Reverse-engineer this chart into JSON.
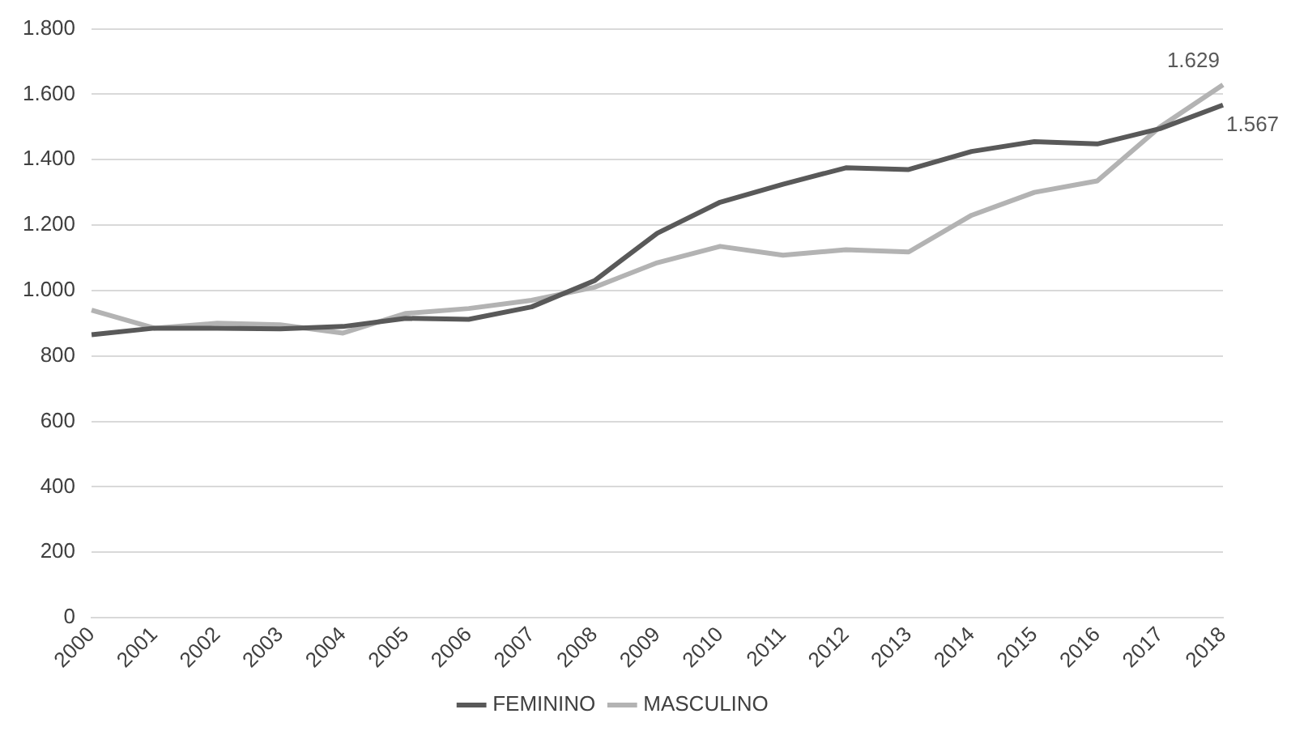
{
  "chart_data": {
    "type": "line",
    "categories": [
      "2000",
      "2001",
      "2002",
      "2003",
      "2004",
      "2005",
      "2006",
      "2007",
      "2008",
      "2009",
      "2010",
      "2011",
      "2012",
      "2013",
      "2014",
      "2015",
      "2016",
      "2017",
      "2018"
    ],
    "series": [
      {
        "name": "FEMININO",
        "color": "#595959",
        "values": [
          865,
          885,
          885,
          883,
          890,
          915,
          912,
          950,
          1030,
          1175,
          1270,
          1325,
          1375,
          1370,
          1425,
          1455,
          1448,
          1495,
          1567
        ],
        "value_labels": [
          null,
          null,
          null,
          null,
          null,
          null,
          null,
          null,
          null,
          null,
          null,
          null,
          null,
          null,
          null,
          null,
          null,
          null,
          "1.567"
        ]
      },
      {
        "name": "MASCULINO",
        "color": "#b3b3b3",
        "values": [
          940,
          885,
          900,
          895,
          870,
          930,
          945,
          970,
          1010,
          1085,
          1135,
          1108,
          1125,
          1118,
          1230,
          1300,
          1335,
          1500,
          1629
        ],
        "value_labels": [
          null,
          null,
          null,
          null,
          null,
          null,
          null,
          null,
          null,
          null,
          null,
          null,
          null,
          null,
          null,
          null,
          null,
          null,
          "1.629"
        ]
      }
    ],
    "ylim": [
      0,
      1800
    ],
    "yticks": [
      {
        "value": 0,
        "label": "0"
      },
      {
        "value": 200,
        "label": "200"
      },
      {
        "value": 400,
        "label": "400"
      },
      {
        "value": 600,
        "label": "600"
      },
      {
        "value": 800,
        "label": "800"
      },
      {
        "value": 1000,
        "label": "1.000"
      },
      {
        "value": 1200,
        "label": "1.200"
      },
      {
        "value": 1400,
        "label": "1.400"
      },
      {
        "value": 1600,
        "label": "1.600"
      },
      {
        "value": 1800,
        "label": "1.800"
      }
    ],
    "grid": "y",
    "legend": "bottom",
    "marker": "none",
    "line_style": "solid"
  }
}
